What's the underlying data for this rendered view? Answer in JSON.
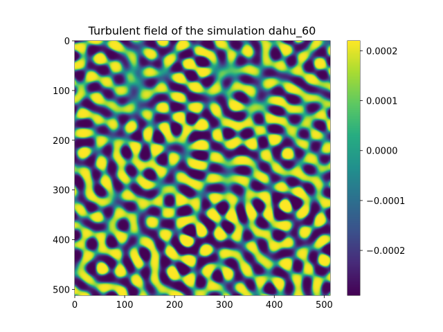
{
  "chart_data": {
    "type": "heatmap",
    "title": "Turbulent field of the simulation dahu_60",
    "xlabel": "",
    "ylabel": "",
    "xlim": [
      0,
      512
    ],
    "ylim": [
      512,
      0
    ],
    "x_ticks": [
      0,
      100,
      200,
      300,
      400,
      500
    ],
    "y_ticks": [
      0,
      100,
      200,
      300,
      400,
      500
    ],
    "x_tick_labels": [
      "0",
      "100",
      "200",
      "300",
      "400",
      "500"
    ],
    "y_tick_labels": [
      "0",
      "100",
      "200",
      "300",
      "400",
      "500"
    ],
    "colormap": "viridis",
    "colorbar": {
      "vmin": -0.00029,
      "vmax": 0.00022,
      "ticks": [
        0.0002,
        0.0001,
        0.0,
        -0.0001,
        -0.0002
      ],
      "tick_labels": [
        "0.0002",
        "0.0001",
        "0.0000",
        "−0.0001",
        "−0.0002"
      ]
    },
    "grid_size": [
      512,
      512
    ],
    "pattern": "saturated labyrinthine turbulent field, values mostly at the extremes (dark purple and yellow) separated by teal/green transition bands"
  }
}
